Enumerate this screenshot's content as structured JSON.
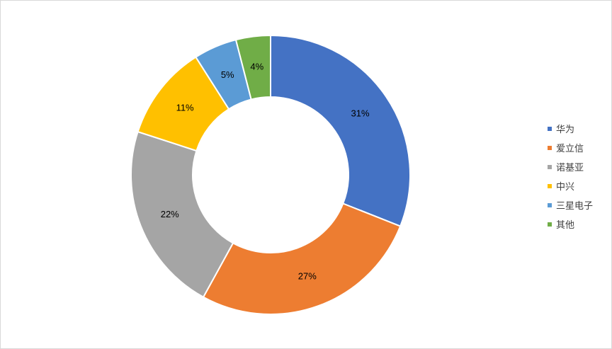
{
  "chart_data": {
    "type": "pie",
    "variant": "donut",
    "title": "",
    "categories": [
      "华为",
      "爱立信",
      "诺基亚",
      "中兴",
      "三星电子",
      "其他"
    ],
    "values": [
      31,
      27,
      22,
      11,
      5,
      4
    ],
    "labels": [
      "31%",
      "27%",
      "22%",
      "11%",
      "5%",
      "4%"
    ],
    "colors": [
      "#4472C4",
      "#ED7D31",
      "#A5A5A5",
      "#FFC000",
      "#5B9BD5",
      "#70AD47"
    ],
    "legend_position": "right",
    "start_angle": "top, clockwise"
  }
}
